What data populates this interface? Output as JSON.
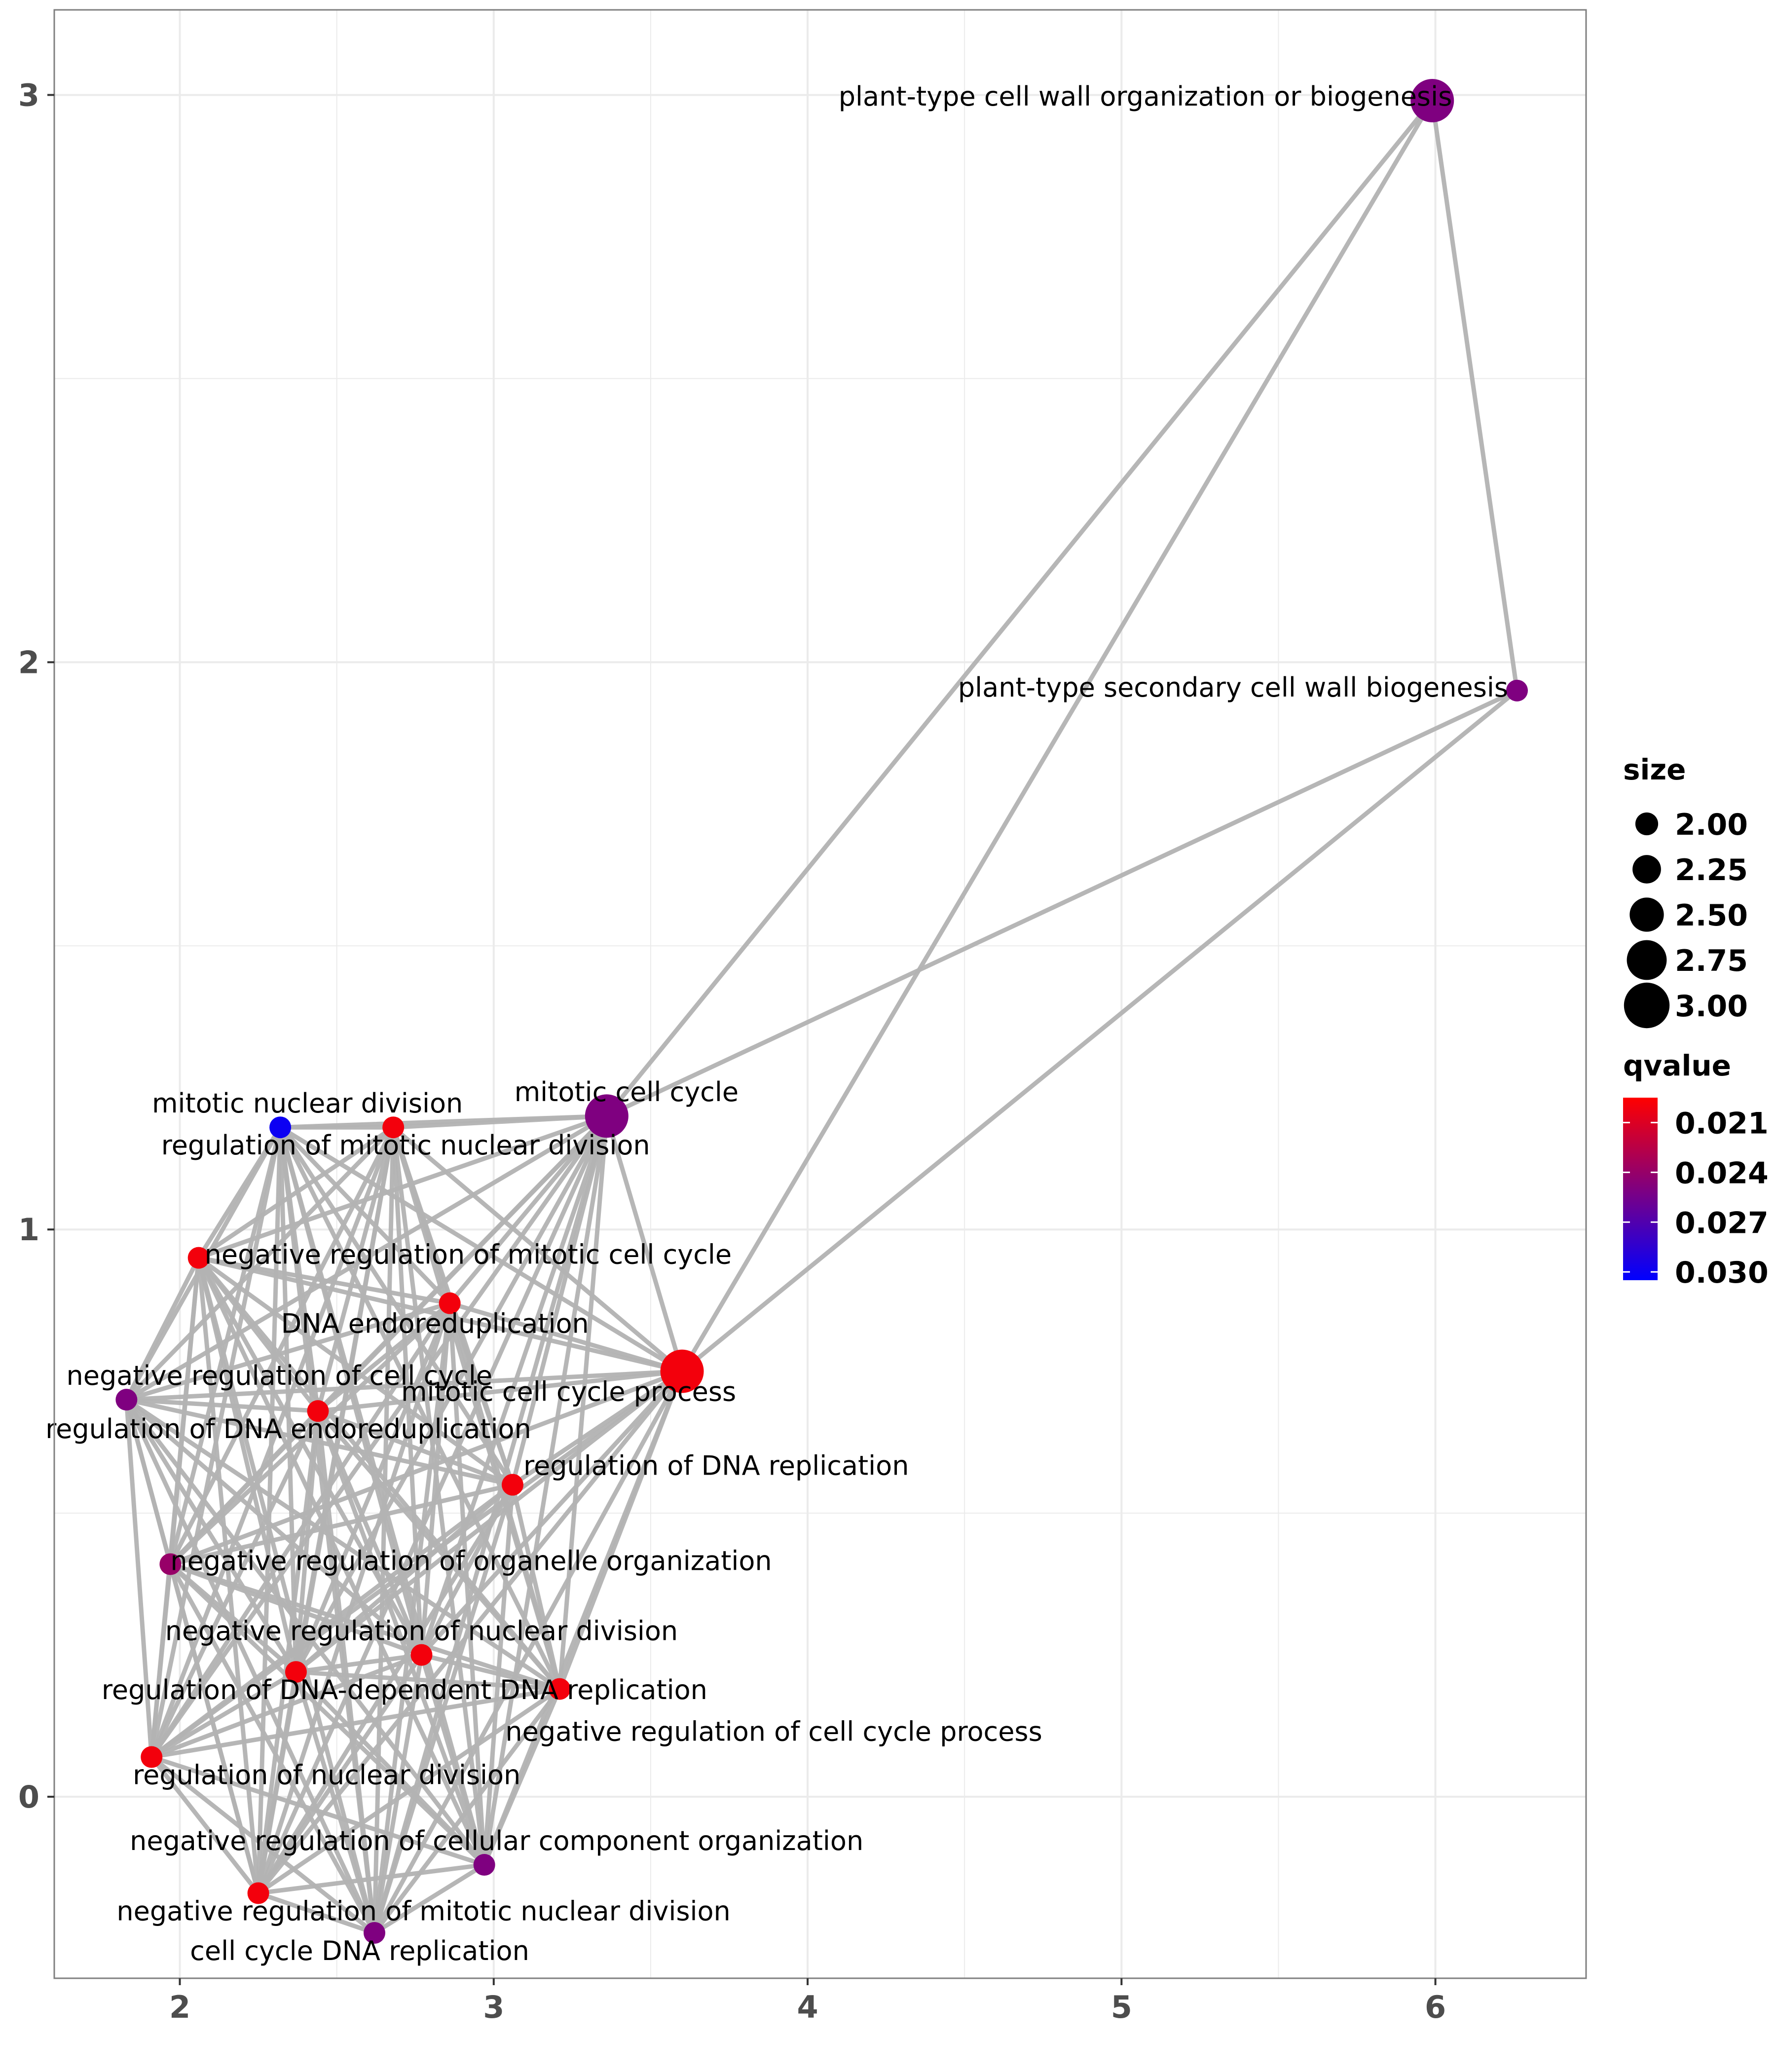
{
  "chart_data": {
    "type": "scatter",
    "subtype": "network",
    "xlim": [
      1.6,
      6.48
    ],
    "ylim": [
      -0.32,
      3.15
    ],
    "x_ticks": [
      2,
      3,
      4,
      5,
      6
    ],
    "y_ticks": [
      0,
      1,
      2,
      3
    ],
    "x_tick_labels": [
      "2",
      "3",
      "4",
      "5",
      "6"
    ],
    "y_tick_labels": [
      "0",
      "1",
      "2",
      "3"
    ],
    "grid": true,
    "colors": {
      "background": "#ffffff",
      "grid": "#ebebeb",
      "edge": "#b3b3b3",
      "panel_border": "#7f7f7f",
      "qvalue_low": "#ff0000",
      "qvalue_high": "#0000ff",
      "label": "#000000",
      "axis_text": "#4d4d4d"
    },
    "nodes": [
      {
        "id": "pcw",
        "label": "plant-type cell wall organization or biogenesis",
        "x": 5.99,
        "y": 2.99,
        "size": 3.0,
        "qvalue": 0.025,
        "label_anchor": "end"
      },
      {
        "id": "pscw",
        "label": "plant-type secondary cell wall biogenesis",
        "x": 6.26,
        "y": 1.95,
        "size": 2.0,
        "qvalue": 0.025,
        "label_anchor": "end"
      },
      {
        "id": "mcc",
        "label": "mitotic cell cycle",
        "x": 3.36,
        "y": 1.2,
        "size": 3.0,
        "qvalue": 0.025,
        "label_anchor": "middle"
      },
      {
        "id": "mccp",
        "label": "mitotic cell cycle process",
        "x": 3.6,
        "y": 0.75,
        "size": 3.0,
        "qvalue": 0.02,
        "label_anchor": "middle"
      },
      {
        "id": "mnd",
        "label": "mitotic nuclear division",
        "x": 2.32,
        "y": 1.18,
        "size": 2.0,
        "qvalue": 0.03,
        "label_anchor": "middle"
      },
      {
        "id": "rmnd",
        "label": "regulation of mitotic nuclear division",
        "x": 2.68,
        "y": 1.18,
        "size": 2.0,
        "qvalue": 0.02,
        "label_anchor": "middle"
      },
      {
        "id": "nrmcc",
        "label": "negative regulation of mitotic cell cycle",
        "x": 2.06,
        "y": 0.95,
        "size": 2.0,
        "qvalue": 0.02,
        "label_anchor": "start"
      },
      {
        "id": "dnaend",
        "label": "DNA endoreduplication",
        "x": 2.86,
        "y": 0.87,
        "size": 2.0,
        "qvalue": 0.02,
        "label_anchor": "middle"
      },
      {
        "id": "nrcc",
        "label": "negative regulation of cell cycle",
        "x": 1.83,
        "y": 0.7,
        "size": 2.0,
        "qvalue": 0.025,
        "label_anchor": "middle"
      },
      {
        "id": "rdnaend",
        "label": "regulation of DNA endoreduplication",
        "x": 2.44,
        "y": 0.68,
        "size": 2.0,
        "qvalue": 0.02,
        "label_anchor": "middle"
      },
      {
        "id": "rdnarep",
        "label": "regulation of DNA replication",
        "x": 3.06,
        "y": 0.55,
        "size": 2.0,
        "qvalue": 0.02,
        "label_anchor": "start"
      },
      {
        "id": "nroo",
        "label": "negative regulation of organelle organization",
        "x": 1.97,
        "y": 0.41,
        "size": 2.0,
        "qvalue": 0.024,
        "label_anchor": "start"
      },
      {
        "id": "nrnd",
        "label": "negative regulation of nuclear division",
        "x": 2.77,
        "y": 0.25,
        "size": 2.0,
        "qvalue": 0.02,
        "label_anchor": "middle"
      },
      {
        "id": "rdddr",
        "label": "regulation of DNA-dependent DNA replication",
        "x": 2.37,
        "y": 0.22,
        "size": 2.0,
        "qvalue": 0.02,
        "label_anchor": "middle"
      },
      {
        "id": "nrccp",
        "label": "negative regulation of cell cycle process",
        "x": 3.21,
        "y": 0.19,
        "size": 2.0,
        "qvalue": 0.02,
        "label_anchor": "start"
      },
      {
        "id": "rnd",
        "label": "regulation of nuclear division",
        "x": 1.91,
        "y": 0.07,
        "size": 2.0,
        "qvalue": 0.02,
        "label_anchor": "middle"
      },
      {
        "id": "nrcco",
        "label": "negative regulation of cellular component organization",
        "x": 2.97,
        "y": -0.12,
        "size": 2.0,
        "qvalue": 0.025,
        "label_anchor": "middle"
      },
      {
        "id": "nrmnd",
        "label": "negative regulation of mitotic nuclear division",
        "x": 2.25,
        "y": -0.17,
        "size": 2.0,
        "qvalue": 0.02,
        "label_anchor": "middle"
      },
      {
        "id": "ccdr",
        "label": "cell cycle DNA replication",
        "x": 2.62,
        "y": -0.24,
        "size": 2.0,
        "qvalue": 0.025,
        "label_anchor": "middle"
      }
    ],
    "edges": [
      [
        "pcw",
        "pscw"
      ],
      [
        "pcw",
        "mcc"
      ],
      [
        "pcw",
        "mccp"
      ],
      [
        "pscw",
        "mcc"
      ],
      [
        "pscw",
        "mccp"
      ],
      [
        "mcc",
        "mccp"
      ],
      [
        "mcc",
        "mnd"
      ],
      [
        "mcc",
        "rmnd"
      ],
      [
        "mcc",
        "nrmcc"
      ],
      [
        "mcc",
        "dnaend"
      ],
      [
        "mcc",
        "nrcc"
      ],
      [
        "mcc",
        "rdnaend"
      ],
      [
        "mcc",
        "rdnarep"
      ],
      [
        "mcc",
        "nroo"
      ],
      [
        "mcc",
        "nrnd"
      ],
      [
        "mcc",
        "rdddr"
      ],
      [
        "mcc",
        "nrccp"
      ],
      [
        "mcc",
        "rnd"
      ],
      [
        "mcc",
        "nrcco"
      ],
      [
        "mcc",
        "nrmnd"
      ],
      [
        "mcc",
        "ccdr"
      ],
      [
        "mccp",
        "mnd"
      ],
      [
        "mccp",
        "rmnd"
      ],
      [
        "mccp",
        "nrmcc"
      ],
      [
        "mccp",
        "dnaend"
      ],
      [
        "mccp",
        "nrcc"
      ],
      [
        "mccp",
        "rdnaend"
      ],
      [
        "mccp",
        "rdnarep"
      ],
      [
        "mccp",
        "nroo"
      ],
      [
        "mccp",
        "nrnd"
      ],
      [
        "mccp",
        "rdddr"
      ],
      [
        "mccp",
        "nrccp"
      ],
      [
        "mccp",
        "rnd"
      ],
      [
        "mccp",
        "nrcco"
      ],
      [
        "mccp",
        "nrmnd"
      ],
      [
        "mccp",
        "ccdr"
      ],
      [
        "mnd",
        "rmnd"
      ],
      [
        "mnd",
        "nrmcc"
      ],
      [
        "mnd",
        "dnaend"
      ],
      [
        "mnd",
        "nrcc"
      ],
      [
        "mnd",
        "rdnaend"
      ],
      [
        "mnd",
        "rdnarep"
      ],
      [
        "mnd",
        "nroo"
      ],
      [
        "mnd",
        "nrnd"
      ],
      [
        "mnd",
        "rdddr"
      ],
      [
        "mnd",
        "nrccp"
      ],
      [
        "mnd",
        "rnd"
      ],
      [
        "mnd",
        "nrcco"
      ],
      [
        "mnd",
        "nrmnd"
      ],
      [
        "mnd",
        "ccdr"
      ],
      [
        "rmnd",
        "nrmcc"
      ],
      [
        "rmnd",
        "dnaend"
      ],
      [
        "rmnd",
        "nrcc"
      ],
      [
        "rmnd",
        "rdnaend"
      ],
      [
        "rmnd",
        "rdnarep"
      ],
      [
        "rmnd",
        "nroo"
      ],
      [
        "rmnd",
        "nrnd"
      ],
      [
        "rmnd",
        "rdddr"
      ],
      [
        "rmnd",
        "nrccp"
      ],
      [
        "rmnd",
        "rnd"
      ],
      [
        "rmnd",
        "nrcco"
      ],
      [
        "rmnd",
        "nrmnd"
      ],
      [
        "rmnd",
        "ccdr"
      ],
      [
        "nrmcc",
        "dnaend"
      ],
      [
        "nrmcc",
        "nrcc"
      ],
      [
        "nrmcc",
        "rdnaend"
      ],
      [
        "nrmcc",
        "rdnarep"
      ],
      [
        "nrmcc",
        "nroo"
      ],
      [
        "nrmcc",
        "nrnd"
      ],
      [
        "nrmcc",
        "rdddr"
      ],
      [
        "nrmcc",
        "nrccp"
      ],
      [
        "nrmcc",
        "rnd"
      ],
      [
        "nrmcc",
        "nrcco"
      ],
      [
        "nrmcc",
        "nrmnd"
      ],
      [
        "nrmcc",
        "ccdr"
      ],
      [
        "dnaend",
        "nrcc"
      ],
      [
        "dnaend",
        "rdnaend"
      ],
      [
        "dnaend",
        "rdnarep"
      ],
      [
        "dnaend",
        "nroo"
      ],
      [
        "dnaend",
        "nrnd"
      ],
      [
        "dnaend",
        "rdddr"
      ],
      [
        "dnaend",
        "nrccp"
      ],
      [
        "dnaend",
        "rnd"
      ],
      [
        "dnaend",
        "nrcco"
      ],
      [
        "dnaend",
        "nrmnd"
      ],
      [
        "dnaend",
        "ccdr"
      ],
      [
        "nrcc",
        "rdnaend"
      ],
      [
        "nrcc",
        "rdnarep"
      ],
      [
        "nrcc",
        "nroo"
      ],
      [
        "nrcc",
        "nrnd"
      ],
      [
        "nrcc",
        "rdddr"
      ],
      [
        "nrcc",
        "nrccp"
      ],
      [
        "nrcc",
        "rnd"
      ],
      [
        "nrcc",
        "nrcco"
      ],
      [
        "nrcc",
        "nrmnd"
      ],
      [
        "nrcc",
        "ccdr"
      ],
      [
        "rdnaend",
        "rdnarep"
      ],
      [
        "rdnaend",
        "nroo"
      ],
      [
        "rdnaend",
        "nrnd"
      ],
      [
        "rdnaend",
        "rdddr"
      ],
      [
        "rdnaend",
        "nrccp"
      ],
      [
        "rdnaend",
        "rnd"
      ],
      [
        "rdnaend",
        "nrcco"
      ],
      [
        "rdnaend",
        "nrmnd"
      ],
      [
        "rdnaend",
        "ccdr"
      ],
      [
        "rdnarep",
        "nroo"
      ],
      [
        "rdnarep",
        "nrnd"
      ],
      [
        "rdnarep",
        "rdddr"
      ],
      [
        "rdnarep",
        "nrccp"
      ],
      [
        "rdnarep",
        "rnd"
      ],
      [
        "rdnarep",
        "nrcco"
      ],
      [
        "rdnarep",
        "nrmnd"
      ],
      [
        "rdnarep",
        "ccdr"
      ],
      [
        "nroo",
        "nrnd"
      ],
      [
        "nroo",
        "rdddr"
      ],
      [
        "nroo",
        "nrccp"
      ],
      [
        "nroo",
        "rnd"
      ],
      [
        "nroo",
        "nrcco"
      ],
      [
        "nroo",
        "nrmnd"
      ],
      [
        "nroo",
        "ccdr"
      ],
      [
        "nrnd",
        "rdddr"
      ],
      [
        "nrnd",
        "nrccp"
      ],
      [
        "nrnd",
        "rnd"
      ],
      [
        "nrnd",
        "nrcco"
      ],
      [
        "nrnd",
        "nrmnd"
      ],
      [
        "nrnd",
        "ccdr"
      ],
      [
        "rdddr",
        "nrccp"
      ],
      [
        "rdddr",
        "rnd"
      ],
      [
        "rdddr",
        "nrcco"
      ],
      [
        "rdddr",
        "nrmnd"
      ],
      [
        "rdddr",
        "ccdr"
      ],
      [
        "nrccp",
        "rnd"
      ],
      [
        "nrccp",
        "nrcco"
      ],
      [
        "nrccp",
        "nrmnd"
      ],
      [
        "nrccp",
        "ccdr"
      ],
      [
        "rnd",
        "nrcco"
      ],
      [
        "rnd",
        "nrmnd"
      ],
      [
        "rnd",
        "ccdr"
      ],
      [
        "nrcco",
        "nrmnd"
      ],
      [
        "nrcco",
        "ccdr"
      ],
      [
        "nrmnd",
        "ccdr"
      ]
    ],
    "legend": {
      "placement": "right",
      "size": {
        "title": "size",
        "values": [
          2.0,
          2.25,
          2.5,
          2.75,
          3.0
        ],
        "labels": [
          "2.00",
          "2.25",
          "2.50",
          "2.75",
          "3.00"
        ]
      },
      "qvalue": {
        "title": "qvalue",
        "range": [
          0.0195,
          0.0305
        ],
        "ticks": [
          0.021,
          0.024,
          0.027,
          0.03
        ],
        "labels": [
          "0.021",
          "0.024",
          "0.027",
          "0.030"
        ]
      }
    }
  }
}
